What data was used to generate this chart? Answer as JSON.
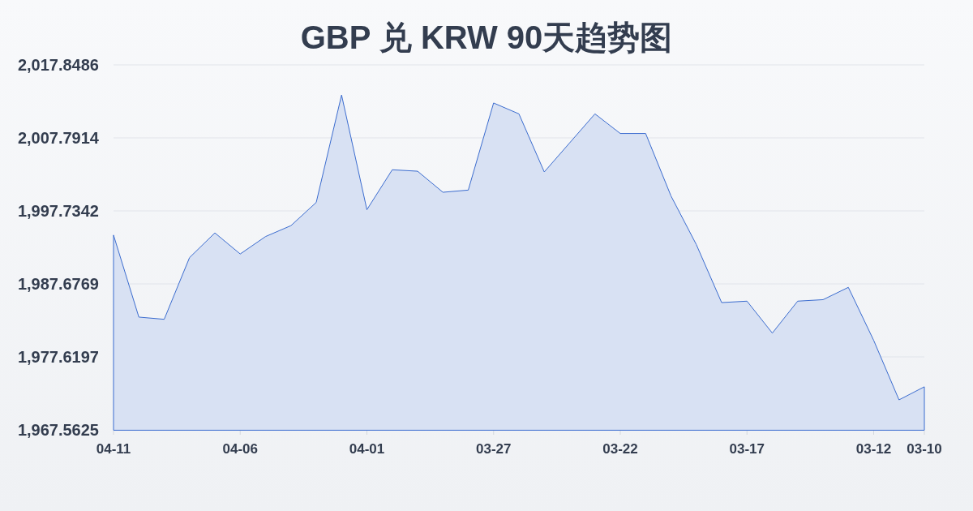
{
  "chart_data": {
    "type": "area",
    "title": "GBP 兑 KRW 90天趋势图",
    "categories": [
      "04-11",
      null,
      null,
      null,
      null,
      "04-06",
      null,
      null,
      null,
      null,
      "04-01",
      null,
      null,
      null,
      null,
      "03-27",
      null,
      null,
      null,
      null,
      "03-22",
      null,
      null,
      null,
      null,
      "03-17",
      null,
      null,
      null,
      null,
      "03-12",
      null,
      "03-10"
    ],
    "values": [
      1994.4,
      1983.1,
      1982.8,
      1991.3,
      1994.7,
      1991.8,
      1994.2,
      1995.7,
      1998.9,
      2013.7,
      1997.9,
      2003.4,
      2003.2,
      2000.3,
      2000.6,
      2012.6,
      2011.1,
      2003.1,
      2007.1,
      2011.1,
      2008.4,
      2008.4,
      1999.8,
      1993.1,
      1985.1,
      1985.3,
      1980.9,
      1985.3,
      1985.5,
      1987.2,
      1979.9,
      1971.7,
      1973.5
    ],
    "color": "#3b6ccf",
    "ylim": [
      1967.5625,
      2017.8486
    ],
    "yticks": [
      {
        "value": 1967.5625,
        "label": "1,967.5625"
      },
      {
        "value": 1977.6197,
        "label": "1,977.6197"
      },
      {
        "value": 1987.6769,
        "label": "1,987.6769"
      },
      {
        "value": 1997.7342,
        "label": "1,997.7342"
      },
      {
        "value": 2007.7914,
        "label": "2,007.7914"
      },
      {
        "value": 2017.8486,
        "label": "2,017.8486"
      }
    ],
    "grid": "y"
  }
}
